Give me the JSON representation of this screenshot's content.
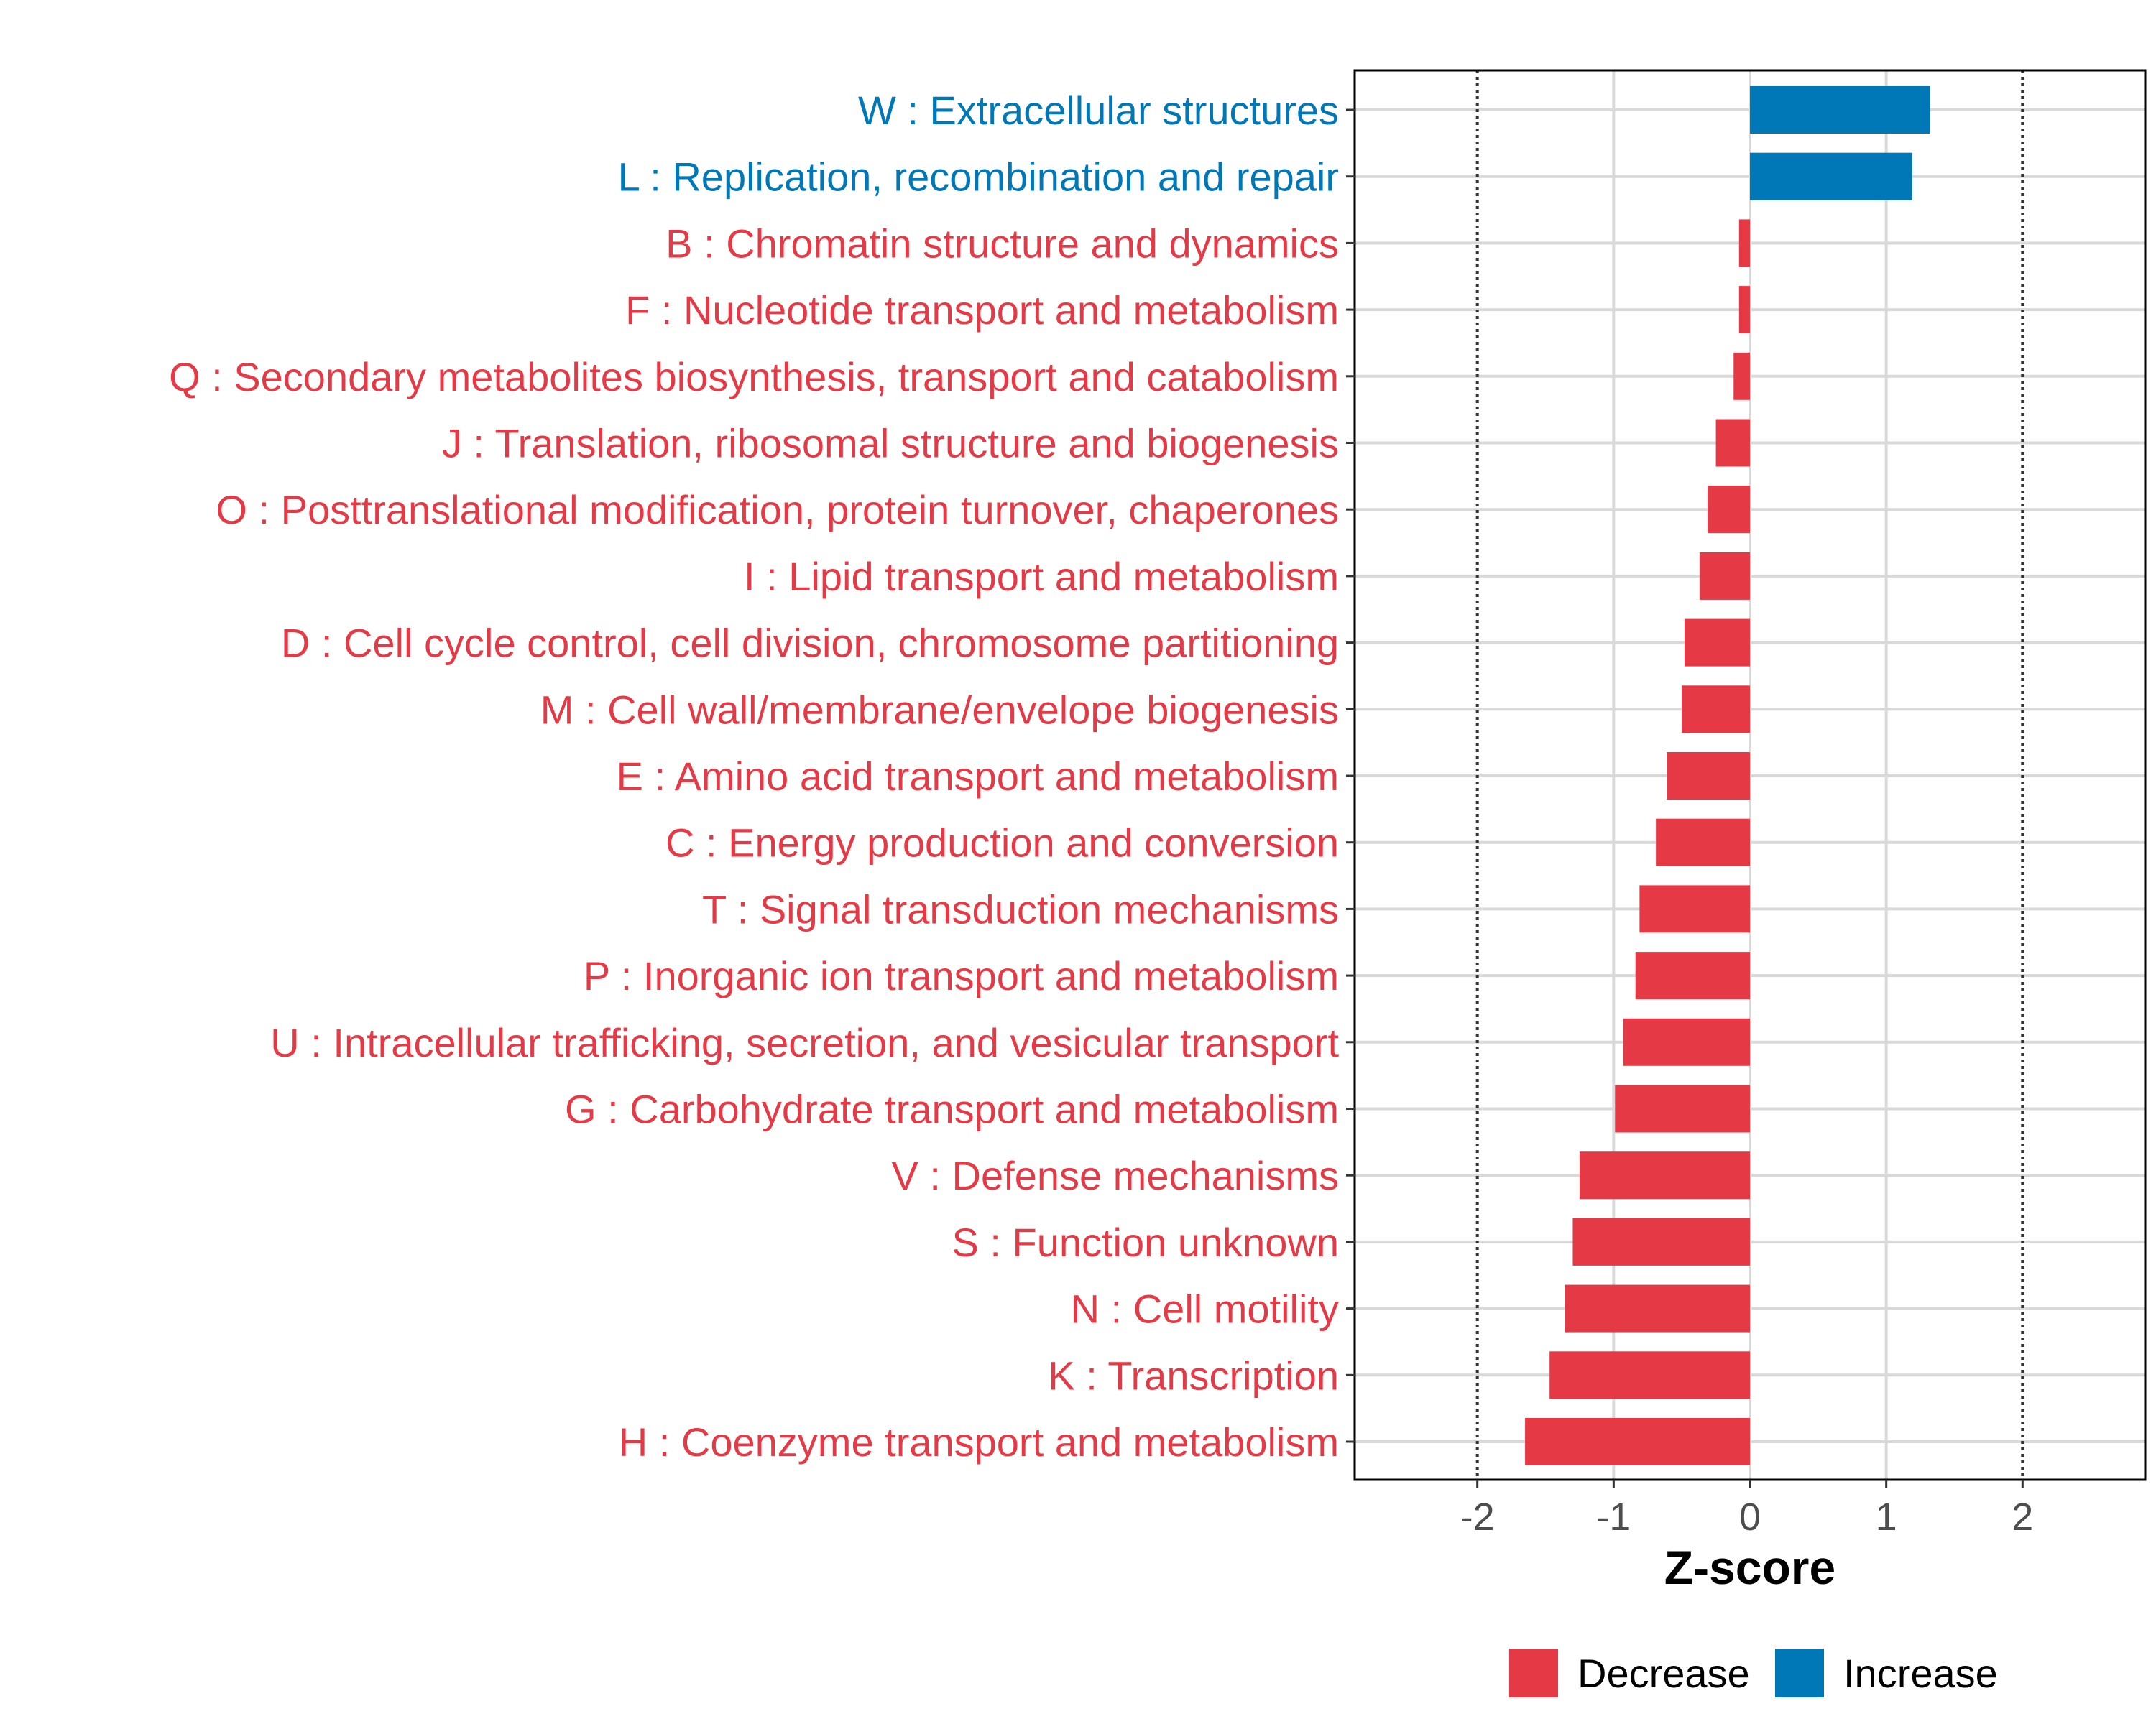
{
  "chart_data": {
    "type": "bar",
    "orientation": "horizontal",
    "xlabel": "Z-score",
    "xlim": [
      -2.9,
      2.9
    ],
    "xticks": [
      -2,
      -1,
      0,
      1,
      2
    ],
    "xtick_labels": [
      "-2",
      "-1",
      "0",
      "1",
      "2"
    ],
    "reference_lines": [
      -2,
      2
    ],
    "grid": true,
    "legend_position": "bottom",
    "colors": {
      "Decrease": "#E63946",
      "Increase": "#0077B6"
    },
    "legend": [
      {
        "label": "Decrease",
        "color": "#E63946"
      },
      {
        "label": "Increase",
        "color": "#0077B6"
      }
    ],
    "categories": [
      "W : Extracellular structures",
      "L : Replication, recombination and repair",
      "B : Chromatin structure and dynamics",
      "F : Nucleotide transport and metabolism",
      "Q : Secondary metabolites biosynthesis, transport and catabolism",
      "J : Translation, ribosomal structure and biogenesis",
      "O : Posttranslational modification, protein turnover, chaperones",
      "I : Lipid transport and metabolism",
      "D : Cell cycle control, cell division, chromosome partitioning",
      "M : Cell wall/membrane/envelope biogenesis",
      "E : Amino acid transport and metabolism",
      "C : Energy production and conversion",
      "T : Signal transduction mechanisms",
      "P : Inorganic ion transport and metabolism",
      "U : Intracellular trafficking, secretion, and vesicular transport",
      "G : Carbohydrate transport and metabolism",
      "V : Defense mechanisms",
      "S : Function unknown",
      "N : Cell motility",
      "K : Transcription",
      "H : Coenzyme transport and metabolism"
    ],
    "values": [
      1.32,
      1.19,
      -0.08,
      -0.08,
      -0.12,
      -0.25,
      -0.31,
      -0.37,
      -0.48,
      -0.5,
      -0.61,
      -0.69,
      -0.81,
      -0.84,
      -0.93,
      -0.99,
      -1.25,
      -1.3,
      -1.36,
      -1.47,
      -1.65
    ],
    "groups": [
      "Increase",
      "Increase",
      "Decrease",
      "Decrease",
      "Decrease",
      "Decrease",
      "Decrease",
      "Decrease",
      "Decrease",
      "Decrease",
      "Decrease",
      "Decrease",
      "Decrease",
      "Decrease",
      "Decrease",
      "Decrease",
      "Decrease",
      "Decrease",
      "Decrease",
      "Decrease",
      "Decrease"
    ]
  }
}
